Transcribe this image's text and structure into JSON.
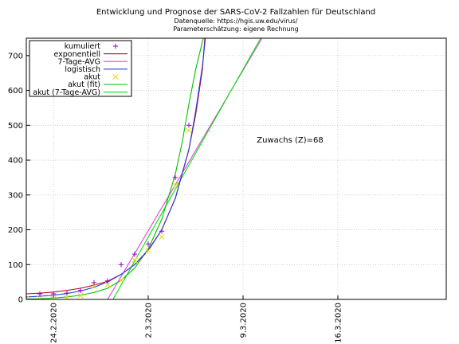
{
  "chart_data": {
    "type": "line",
    "title": "Entwicklung und Prognose der SARS-CoV-2 Fallzahlen für Deutschland",
    "subtitle_lines": [
      "Datenquelle: https://hgis.uw.edu/virus/",
      "Parameterschätzung: eigene Rechnung"
    ],
    "xlabel": "",
    "ylabel": "",
    "xlim": [
      0,
      31
    ],
    "ylim": [
      0,
      750
    ],
    "yticks": [
      0,
      100,
      200,
      300,
      400,
      500,
      600,
      700
    ],
    "xticks": [
      {
        "x": 2,
        "label": "24.2.2020"
      },
      {
        "x": 9,
        "label": "2.3.2020"
      },
      {
        "x": 16,
        "label": "9.3.2020"
      },
      {
        "x": 23,
        "label": "16.3.2020"
      }
    ],
    "grid": true,
    "legend_position": "top-left",
    "annotation": "Zuwachs (Z)=68",
    "series": [
      {
        "name": "kumuliert",
        "style": "markers",
        "marker": "plus",
        "color": "#9400d3",
        "x": [
          0,
          1,
          2,
          3,
          4,
          5,
          6,
          7,
          8,
          9,
          10,
          11,
          12
        ],
        "y": [
          16,
          16,
          16,
          18,
          26,
          48,
          53,
          100,
          130,
          159,
          196,
          350,
          500
        ]
      },
      {
        "name": "exponentiell",
        "style": "line",
        "color": "#b8002e",
        "x": [
          0,
          1,
          2,
          3,
          4,
          5,
          6,
          7,
          8,
          9,
          10,
          11,
          12,
          12.5,
          13,
          13.2
        ],
        "y": [
          16,
          18,
          21,
          26,
          32,
          41,
          52,
          72,
          100,
          140,
          200,
          290,
          430,
          530,
          660,
          760
        ]
      },
      {
        "name": "7-Tage-AVG",
        "style": "line",
        "color": "#e040e0",
        "x": [
          6.0,
          17.4
        ],
        "y": [
          0,
          750
        ]
      },
      {
        "name": "logistisch",
        "style": "line",
        "color": "#2a3bd8",
        "x": [
          0,
          1,
          2,
          3,
          4,
          5,
          6,
          7,
          8,
          9,
          10,
          11,
          12,
          12.5,
          13,
          13.25
        ],
        "y": [
          7,
          9,
          12,
          17,
          24,
          35,
          50,
          72,
          100,
          142,
          200,
          290,
          430,
          540,
          670,
          760
        ]
      },
      {
        "name": "akut",
        "style": "markers",
        "marker": "cross",
        "color": "#e8d800",
        "x": [
          0,
          1,
          2,
          3,
          4,
          5,
          6,
          7,
          8,
          9,
          10,
          11,
          12
        ],
        "y": [
          2,
          2,
          2,
          5,
          11,
          38,
          43,
          55,
          113,
          140,
          180,
          328,
          485
        ]
      },
      {
        "name": "akut (fit)",
        "style": "line",
        "color": "#00c000",
        "x": [
          0,
          1,
          2,
          3,
          4,
          5,
          6,
          7,
          8,
          9,
          10,
          11,
          11.5,
          12,
          12.5,
          13,
          13.2
        ],
        "y": [
          1,
          2,
          4,
          7,
          12,
          20,
          32,
          55,
          90,
          145,
          230,
          360,
          450,
          560,
          660,
          740,
          770
        ]
      },
      {
        "name": "akut (7-Tage-AVG)",
        "style": "line",
        "color": "#00e800",
        "x": [
          6.4,
          17.3
        ],
        "y": [
          0,
          750
        ]
      }
    ]
  }
}
